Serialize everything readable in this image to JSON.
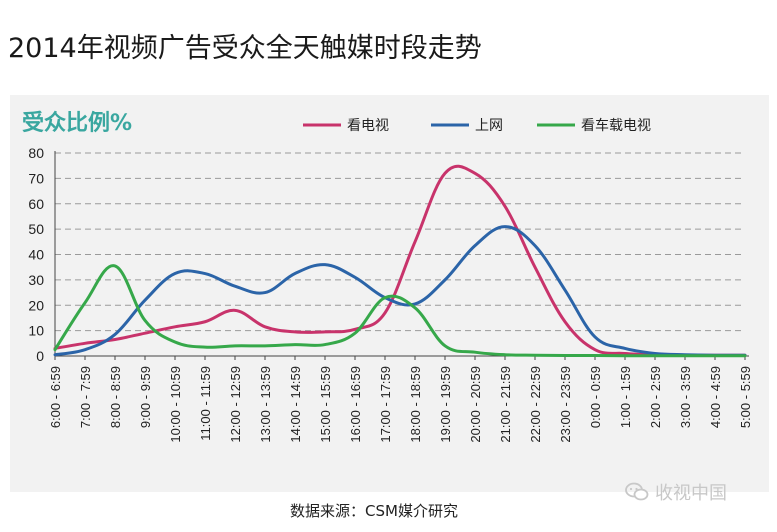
{
  "page_title": "2014年视频广告受众全天触媒时段走势",
  "source_text": "数据来源：CSM媒介研究",
  "watermark_text": "收视中国",
  "chart_data": {
    "type": "line",
    "ylabel": "受众比例%",
    "ylim": [
      0,
      80
    ],
    "yticks": [
      0,
      10,
      20,
      30,
      40,
      50,
      60,
      70,
      80
    ],
    "grid": true,
    "legend_position": "top-center",
    "categories": [
      "6:00 - 6:59",
      "7:00 - 7:59",
      "8:00 - 8:59",
      "9:00 - 9:59",
      "10:00 - 10:59",
      "11:00 - 11:59",
      "12:00 - 12:59",
      "13:00 - 13:59",
      "14:00 - 14:59",
      "15:00 - 15:59",
      "16:00 - 16:59",
      "17:00 - 17:59",
      "18:00 - 18:59",
      "19:00 - 19:59",
      "20:00 - 20:59",
      "21:00 - 21:59",
      "22:00 - 22:59",
      "23:00 - 23:59",
      "0:00 - 0:59",
      "1:00 - 1:59",
      "2:00 - 2:59",
      "3:00 - 3:59",
      "4:00 - 4:59",
      "5:00 - 5:59"
    ],
    "series": [
      {
        "name": "看电视",
        "color": "#c8336b",
        "values": [
          3,
          5,
          6.5,
          9,
          11.5,
          13.5,
          18,
          11.5,
          9.5,
          9.5,
          10.5,
          17,
          45,
          72,
          72,
          59,
          35,
          13.5,
          2.5,
          1,
          0.5,
          0.3,
          0.3,
          0.3
        ]
      },
      {
        "name": "上网",
        "color": "#2b64a8",
        "values": [
          0.5,
          2.5,
          8.5,
          22,
          32.5,
          32.5,
          27.5,
          25,
          32.5,
          36,
          31,
          23,
          20.5,
          30,
          43.5,
          51,
          43.5,
          26,
          7.5,
          3,
          1,
          0.5,
          0.3,
          0.3
        ]
      },
      {
        "name": "看车载电视",
        "color": "#36a84a",
        "values": [
          2.5,
          21,
          35.5,
          14,
          5.5,
          3.5,
          4,
          4,
          4.5,
          4.5,
          9,
          23,
          19,
          4,
          1.5,
          0.5,
          0.3,
          0.2,
          0.2,
          0.1,
          0.1,
          0.1,
          0.1,
          0.1
        ]
      }
    ]
  }
}
